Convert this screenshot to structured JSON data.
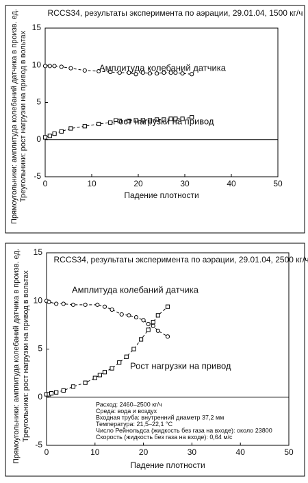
{
  "chart_data": [
    {
      "type": "line",
      "title": "RCCS34, результаты эксперимента по аэрации, 29.01.04, 1500 кг/ч",
      "x_label": "Падение плотности",
      "y_label": [
        "Прямоугольники: амплитуда колебаний датчика в произв. ед.",
        "Треугольники: рост нагрузки на привод в вольтах"
      ],
      "xlim": [
        0,
        50
      ],
      "xticks": [
        0,
        10,
        20,
        30,
        40,
        50
      ],
      "ylim": [
        -5,
        15
      ],
      "yticks": [
        -5,
        0,
        5,
        10,
        15
      ],
      "series": [
        {
          "name": "Амплитуда колебаний датчика",
          "color": "#000000",
          "marker": "circle",
          "x": [
            0,
            1,
            2,
            3.5,
            5.5,
            8.5,
            11.5,
            14,
            16,
            18,
            19.5,
            21,
            22.5,
            24,
            25.5,
            27,
            28,
            29.5,
            31.5
          ],
          "values": [
            9.9,
            9.9,
            9.9,
            9.8,
            9.6,
            9.3,
            9.2,
            9.1,
            9.0,
            9.0,
            8.8,
            9.0,
            8.9,
            8.9,
            9.0,
            9.0,
            9.0,
            8.9,
            8.8
          ]
        },
        {
          "name": "Рост нагрузки на привод",
          "color": "#000000",
          "marker": "square",
          "x": [
            0,
            1,
            2,
            3.5,
            5.5,
            8.5,
            11.5,
            14,
            16,
            18,
            19.5,
            21,
            22.5,
            24,
            25.5,
            27,
            28,
            29.5,
            31.5
          ],
          "values": [
            0.3,
            0.5,
            0.8,
            1.1,
            1.5,
            1.8,
            2.1,
            2.3,
            2.5,
            2.5,
            2.6,
            2.6,
            2.6,
            2.7,
            2.7,
            2.8,
            2.8,
            2.8,
            3.0
          ]
        }
      ]
    },
    {
      "type": "line",
      "title": "RCCS34, результаты эксперимента по аэрации, 29.01.04, 2500 кг/ч",
      "x_label": "Падение плотности",
      "y_label": [
        "Прямоугольники: амплитуда колебаний датчика в произв. ед.",
        "Треугольники: рост нагрузки на привод в вольтах"
      ],
      "xlim": [
        0,
        50
      ],
      "xticks": [
        0,
        10,
        20,
        30,
        40,
        50
      ],
      "ylim": [
        -5,
        15
      ],
      "yticks": [
        -5,
        0,
        5,
        10,
        15
      ],
      "notes": [
        "Расход: 2460–2500 кг/ч",
        "Среда: вода и воздух",
        "Входная труба: внутренний диаметр 37,2 мм",
        "Температура: 21,5–22,1 °C",
        "Число Рейнольдса (жидкость без газа на входе): около 23800",
        "Скорость (жидкость без газа на входе): 0,64 м/с"
      ],
      "series": [
        {
          "name": "Амплитуда колебаний датчика",
          "color": "#000000",
          "marker": "circle",
          "x": [
            0,
            0.5,
            2,
            3.5,
            5.5,
            8,
            10.5,
            12,
            13.5,
            15.5,
            17,
            18.5,
            20,
            21,
            22,
            23,
            25
          ],
          "values": [
            10,
            9.9,
            9.7,
            9.7,
            9.6,
            9.6,
            9.6,
            9.4,
            9.1,
            8.6,
            8.5,
            8.3,
            8.0,
            7.6,
            7.4,
            6.9,
            6.3
          ]
        },
        {
          "name": "Рост нагрузки на привод",
          "color": "#000000",
          "marker": "square",
          "x": [
            0,
            0.5,
            1,
            2,
            3.5,
            5.5,
            8,
            10,
            11,
            12,
            13.5,
            15,
            16.5,
            18,
            19.5,
            21,
            22,
            23,
            25
          ],
          "values": [
            0.3,
            0.3,
            0.4,
            0.5,
            0.7,
            1.1,
            1.5,
            2.0,
            2.3,
            2.6,
            3.0,
            3.6,
            4.2,
            5.0,
            6.0,
            7.0,
            7.8,
            8.5,
            9.4
          ]
        }
      ]
    }
  ]
}
